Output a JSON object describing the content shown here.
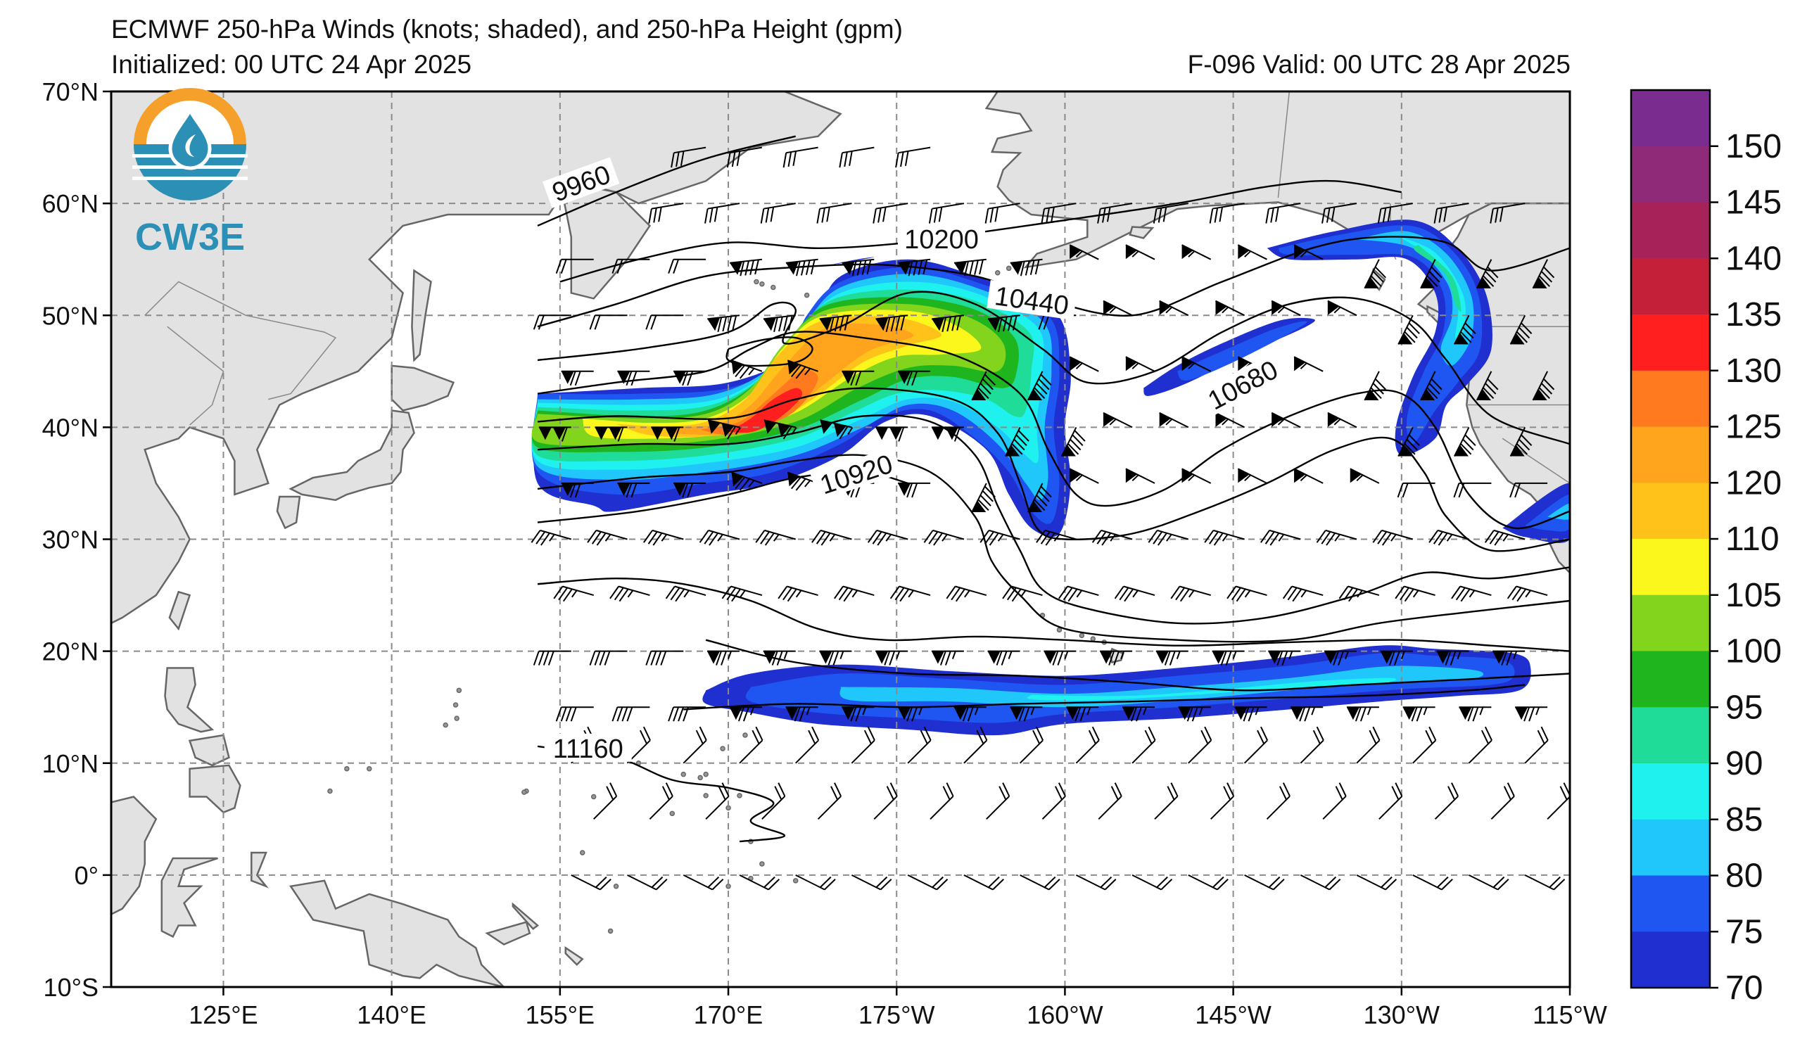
{
  "title": "ECMWF 250-hPa Winds (knots; shaded), and 250-hPa Height (gpm)",
  "initialized": "Initialized: 00 UTC 24 Apr 2025",
  "valid": "F-096  Valid: 00 UTC 28 Apr 2025",
  "logo": {
    "text": "CW3E",
    "icon": "water-drop-icon",
    "ring_color": "#f5a02a",
    "accent_color": "#2c8fb5"
  },
  "lat_labels": [
    "70°N",
    "60°N",
    "50°N",
    "40°N",
    "30°N",
    "20°N",
    "10°N",
    "0°",
    "10°S"
  ],
  "lat_values": [
    70,
    60,
    50,
    40,
    30,
    20,
    10,
    0,
    -10
  ],
  "lon_labels": [
    "125°E",
    "140°E",
    "155°E",
    "170°E",
    "175°W",
    "160°W",
    "145°W",
    "130°W",
    "115°W"
  ],
  "lon_values": [
    125,
    140,
    155,
    170,
    185,
    200,
    215,
    230,
    245
  ],
  "map_extent": {
    "lon_min": 115,
    "lon_max": 245,
    "lat_min": -10,
    "lat_max": 70
  },
  "colorbar": {
    "labels": [
      "150",
      "145",
      "140",
      "135",
      "130",
      "125",
      "120",
      "110",
      "105",
      "100",
      "95",
      "90",
      "85",
      "80",
      "75",
      "70"
    ],
    "colors": [
      "#7a2c8f",
      "#8e2a78",
      "#a8225a",
      "#c5203a",
      "#ff1f1f",
      "#ff7a1f",
      "#ffa41c",
      "#ffc21a",
      "#fbf71d",
      "#82d41c",
      "#1fb51f",
      "#1fdc98",
      "#1ff2ee",
      "#1fc7fb",
      "#1f55f0",
      "#1f2fd0"
    ]
  },
  "contour_labels": [
    {
      "text": "9960",
      "lon": 157,
      "lat": 61.5
    },
    {
      "text": "10200",
      "lon": 189,
      "lat": 56.5
    },
    {
      "text": "10440",
      "lon": 197,
      "lat": 51
    },
    {
      "text": "10680",
      "lon": 216,
      "lat": 43.5
    },
    {
      "text": "10920",
      "lon": 181.5,
      "lat": 35.5
    },
    {
      "text": "11160",
      "lon": 157.5,
      "lat": 11
    }
  ],
  "jets": [
    {
      "name": "north-pacific-jet",
      "core_speed": 130
    },
    {
      "name": "subtropical-jet",
      "core_speed": 85
    },
    {
      "name": "west-coast-jet",
      "core_speed": 90
    }
  ]
}
